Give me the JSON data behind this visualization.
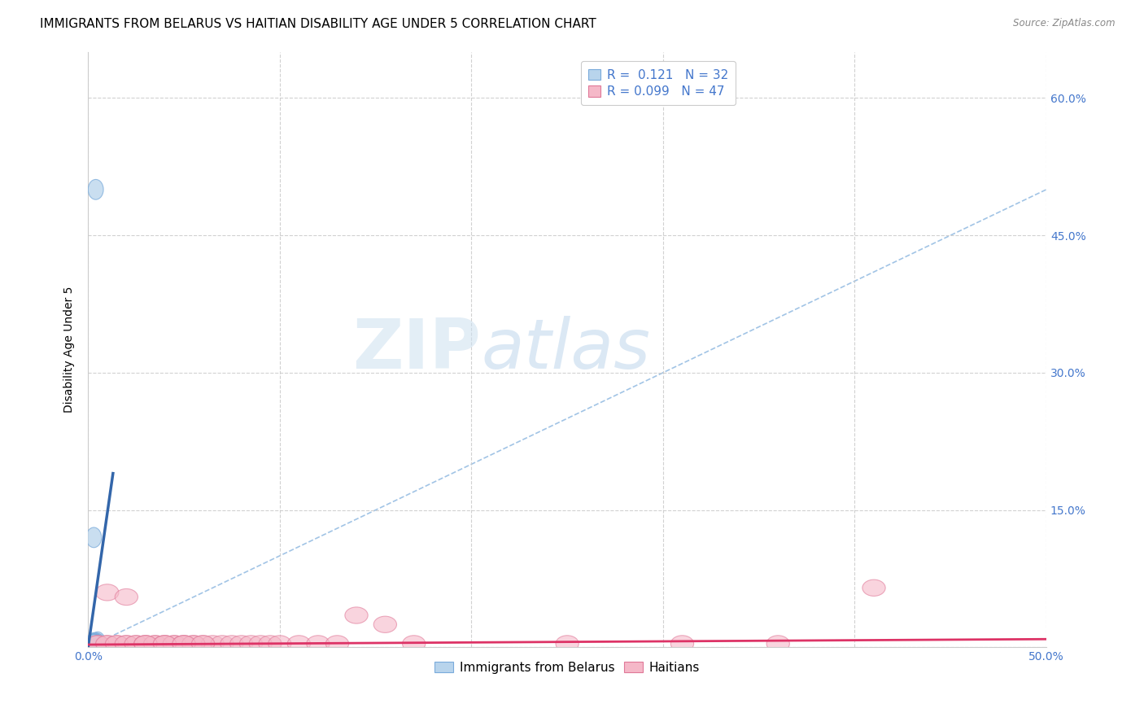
{
  "title": "IMMIGRANTS FROM BELARUS VS HAITIAN DISABILITY AGE UNDER 5 CORRELATION CHART",
  "source": "Source: ZipAtlas.com",
  "ylabel": "Disability Age Under 5",
  "xlim": [
    0.0,
    0.5
  ],
  "ylim": [
    0.0,
    0.65
  ],
  "grid_color": "#cccccc",
  "background_color": "#ffffff",
  "watermark_zip": "ZIP",
  "watermark_atlas": "atlas",
  "legend_R1": "0.121",
  "legend_N1": "32",
  "legend_R2": "0.099",
  "legend_N2": "47",
  "color_blue_fill": "#b8d4ec",
  "color_blue_edge": "#7aabdb",
  "color_pink_fill": "#f5b8c8",
  "color_pink_edge": "#e07898",
  "color_blue_line": "#3366aa",
  "color_pink_line": "#dd3366",
  "color_diag": "#7aabdb",
  "color_axis_label": "#4477cc",
  "belarus_x": [
    0.004,
    0.003,
    0.005,
    0.003,
    0.004,
    0.003,
    0.005,
    0.004,
    0.003,
    0.004,
    0.003,
    0.004,
    0.003,
    0.004,
    0.003,
    0.003,
    0.003,
    0.004,
    0.003,
    0.004,
    0.003,
    0.003,
    0.003,
    0.003,
    0.003,
    0.003,
    0.004,
    0.003,
    0.003,
    0.003,
    0.003,
    0.003
  ],
  "belarus_y": [
    0.5,
    0.005,
    0.006,
    0.004,
    0.005,
    0.003,
    0.004,
    0.003,
    0.003,
    0.004,
    0.003,
    0.003,
    0.004,
    0.003,
    0.003,
    0.003,
    0.003,
    0.003,
    0.003,
    0.003,
    0.003,
    0.003,
    0.003,
    0.003,
    0.003,
    0.003,
    0.003,
    0.003,
    0.003,
    0.003,
    0.12,
    0.003
  ],
  "haiti_x": [
    0.005,
    0.01,
    0.015,
    0.02,
    0.025,
    0.03,
    0.035,
    0.04,
    0.045,
    0.05,
    0.055,
    0.06,
    0.065,
    0.07,
    0.075,
    0.08,
    0.085,
    0.09,
    0.095,
    0.1,
    0.11,
    0.12,
    0.13,
    0.14,
    0.155,
    0.17,
    0.005,
    0.01,
    0.015,
    0.02,
    0.025,
    0.03,
    0.035,
    0.04,
    0.045,
    0.05,
    0.055,
    0.25,
    0.31,
    0.36,
    0.01,
    0.02,
    0.03,
    0.04,
    0.05,
    0.06,
    0.41
  ],
  "haiti_y": [
    0.004,
    0.004,
    0.004,
    0.004,
    0.004,
    0.004,
    0.004,
    0.004,
    0.004,
    0.004,
    0.004,
    0.004,
    0.004,
    0.004,
    0.004,
    0.004,
    0.004,
    0.004,
    0.004,
    0.004,
    0.004,
    0.004,
    0.004,
    0.035,
    0.025,
    0.004,
    0.004,
    0.004,
    0.004,
    0.004,
    0.004,
    0.004,
    0.004,
    0.004,
    0.004,
    0.004,
    0.004,
    0.004,
    0.004,
    0.004,
    0.06,
    0.055,
    0.004,
    0.004,
    0.004,
    0.004,
    0.065
  ],
  "title_fontsize": 11,
  "axis_label_fontsize": 10,
  "tick_fontsize": 10,
  "legend_fontsize": 11
}
